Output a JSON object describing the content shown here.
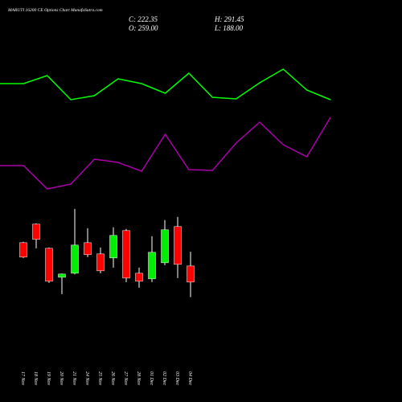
{
  "chart_data": [
    {
      "type": "line",
      "ylim": [
        0,
        100
      ],
      "series": [
        {
          "color": "#00ff00",
          "values": [
            78,
            78,
            83,
            68,
            70.5,
            81,
            78,
            72,
            84.5,
            69.5,
            68.5,
            78.5,
            87,
            74,
            68
          ]
        },
        {
          "color": "#aa00aa",
          "values": [
            27,
            27,
            12.5,
            15.5,
            31,
            29,
            23.5,
            46.5,
            24.5,
            24,
            41,
            54,
            40,
            32.5,
            57
          ]
        }
      ]
    },
    {
      "type": "candlestick",
      "title": "MARUTI 16200  CE Options  Chart MunafaSutra.com",
      "header": [
        "C: 222.35",
        "O: 259.00",
        "H: 291.45",
        "L: 188.00"
      ],
      "categories": [
        "17 Nov",
        "18 Nov",
        "19 Nov",
        "20 Nov",
        "21 Nov",
        "24 Nov",
        "25 Nov",
        "26 Nov",
        "27 Nov",
        "28 Nov",
        "01 Dec",
        "02 Dec",
        "03 Dec",
        "04 Dec"
      ],
      "open": [
        312.1,
        354.3,
        299.3,
        233.3,
        242.5,
        312.1,
        286.5,
        277.3,
        339.6,
        242.5,
        229.7,
        266.3,
        348.8,
        259
      ],
      "high": [
        314,
        356,
        301,
        242,
        389.1,
        345.1,
        301.1,
        347,
        343.3,
        255.3,
        326.8,
        363.5,
        370.8,
        291.45
      ],
      "low": [
        277.3,
        299.3,
        220.5,
        194.9,
        240,
        279.2,
        242.5,
        255.3,
        222.4,
        209.5,
        222.4,
        260.8,
        231.5,
        188
      ],
      "close": [
        279.2,
        319.5,
        224.2,
        240.7,
        306.6,
        284.7,
        248,
        328.6,
        231.5,
        224.2,
        290.2,
        341.5,
        262.7,
        222.35
      ],
      "up_color": "#00ee00",
      "down_color": "#ff0000",
      "ylim": [
        169,
        407
      ]
    }
  ]
}
